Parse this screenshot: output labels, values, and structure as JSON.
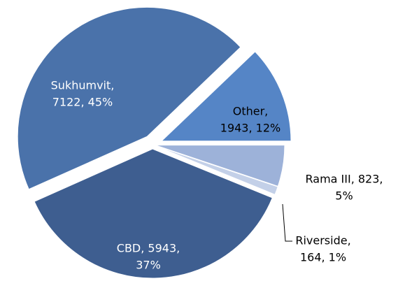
{
  "chart_data": {
    "type": "pie",
    "values": [
      1943,
      823,
      164,
      5943,
      7122
    ],
    "value_labels": [
      [
        "Other,",
        "1943, 12%"
      ],
      [
        "Rama III, 823,",
        "5%"
      ],
      [
        "Riverside,",
        "164, 1%"
      ],
      [
        "CBD, 5943,",
        "37%"
      ],
      [
        "Sukhumvit,",
        "7122, 45%"
      ]
    ],
    "colors": [
      "#5585c6",
      "#9db2d9",
      "#c3d0e8",
      "#3e5e90",
      "#4a72aa"
    ]
  }
}
